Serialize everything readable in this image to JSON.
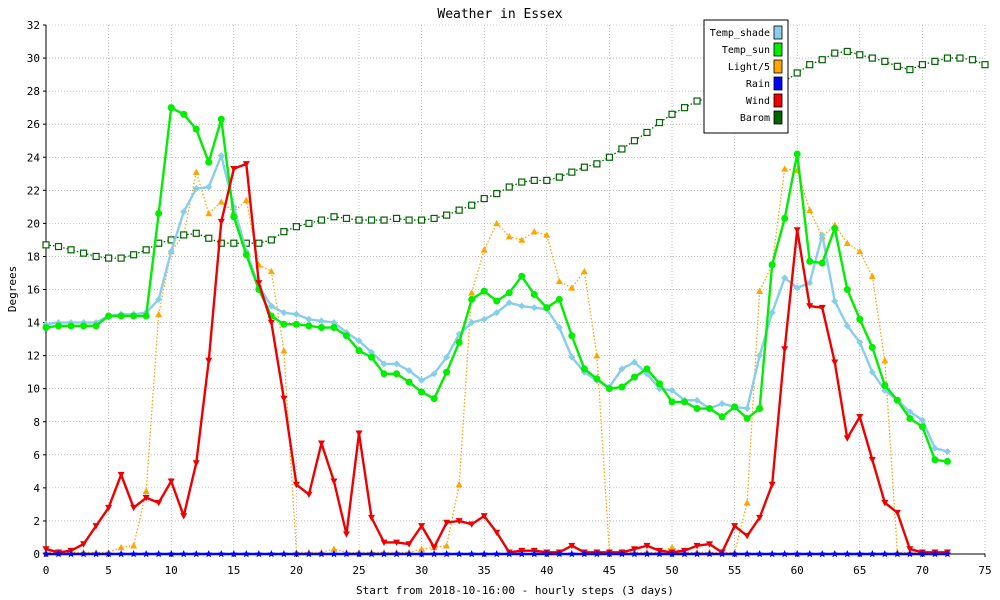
{
  "chart_data": {
    "type": "line",
    "title": "Weather in Essex",
    "xlabel": "Start from 2018-10-16:00 - hourly steps (3 days)",
    "ylabel": "Degrees",
    "xlim": [
      0,
      75
    ],
    "ylim": [
      0,
      32
    ],
    "xticks": [
      0,
      5,
      10,
      15,
      20,
      25,
      30,
      35,
      40,
      45,
      50,
      55,
      60,
      65,
      70,
      75
    ],
    "yticks": [
      0,
      2,
      4,
      6,
      8,
      10,
      12,
      14,
      16,
      18,
      20,
      22,
      24,
      26,
      28,
      30,
      32
    ],
    "grid": true,
    "legend_position": "top-right",
    "series": [
      {
        "name": "Temp_shade",
        "color": "#87ceeb",
        "marker": "diamond",
        "style": "solid",
        "values": [
          13.9,
          14.0,
          14.0,
          14.0,
          14.0,
          14.4,
          14.5,
          14.5,
          14.6,
          15.4,
          18.3,
          20.7,
          22.1,
          22.2,
          24.1,
          21.0,
          18.3,
          16.2,
          15.0,
          14.6,
          14.5,
          14.2,
          14.1,
          14.0,
          13.4,
          12.9,
          12.2,
          11.5,
          11.5,
          11.1,
          10.5,
          10.9,
          11.9,
          13.3,
          14.0,
          14.2,
          14.6,
          15.2,
          15.0,
          14.9,
          14.8,
          13.7,
          11.9,
          11.0,
          10.5,
          10.1,
          11.2,
          11.6,
          10.9,
          10.0,
          9.9,
          9.3,
          9.3,
          8.8,
          9.1,
          8.9,
          8.8,
          12.0,
          14.6,
          16.7,
          16.1,
          16.4,
          19.3,
          15.3,
          13.8,
          12.8,
          11.0,
          9.9,
          9.3,
          8.6,
          8.1,
          6.4,
          6.2
        ]
      },
      {
        "name": "Temp_sun",
        "color": "#00ee00",
        "marker": "circle",
        "style": "solid",
        "values": [
          13.7,
          13.8,
          13.8,
          13.8,
          13.8,
          14.4,
          14.4,
          14.4,
          14.4,
          20.6,
          27.0,
          26.6,
          25.7,
          23.7,
          26.3,
          20.4,
          18.1,
          16.0,
          14.4,
          13.9,
          13.9,
          13.8,
          13.7,
          13.7,
          13.2,
          12.3,
          11.9,
          10.9,
          10.9,
          10.4,
          9.8,
          9.4,
          11.0,
          12.8,
          15.4,
          15.9,
          15.3,
          15.8,
          16.8,
          15.7,
          14.9,
          15.4,
          13.2,
          11.2,
          10.6,
          10.0,
          10.1,
          10.7,
          11.2,
          10.3,
          9.2,
          9.2,
          8.8,
          8.8,
          8.3,
          8.9,
          8.2,
          8.8,
          17.5,
          20.3,
          24.2,
          17.7,
          17.6,
          19.7,
          16.0,
          14.2,
          12.5,
          10.2,
          9.3,
          8.2,
          7.7,
          5.7,
          5.6
        ]
      },
      {
        "name": "Light/5",
        "color": "#ffa500",
        "marker": "triangle-up",
        "style": "dotted",
        "values": [
          0.1,
          0.1,
          0.1,
          0.1,
          0.1,
          0.1,
          0.4,
          0.5,
          3.8,
          14.5,
          18.3,
          19.3,
          23.1,
          20.6,
          21.3,
          20.7,
          21.4,
          17.5,
          17.1,
          12.3,
          0.1,
          0.1,
          0.1,
          0.3,
          0.1,
          0.1,
          0.1,
          0.1,
          0.1,
          0.1,
          0.3,
          0.4,
          0.5,
          4.2,
          15.8,
          18.4,
          20.0,
          19.2,
          19.0,
          19.5,
          19.3,
          16.5,
          16.1,
          17.1,
          12.0,
          0.1,
          0.1,
          0.1,
          0.1,
          0.1,
          0.4,
          0.1,
          0.1,
          0.1,
          0.1,
          0.1,
          3.1,
          15.9,
          17.5,
          23.3,
          23.2,
          20.8,
          19.2,
          19.9,
          18.8,
          18.3,
          16.8,
          11.7,
          0.1,
          0.1,
          0.1,
          0.1,
          0.1
        ]
      },
      {
        "name": "Rain",
        "color": "#0000ff",
        "marker": "star",
        "style": "solid",
        "values": [
          0,
          0,
          0,
          0,
          0,
          0,
          0,
          0,
          0,
          0,
          0,
          0,
          0,
          0,
          0,
          0,
          0,
          0,
          0,
          0,
          0,
          0,
          0,
          0,
          0,
          0,
          0,
          0,
          0,
          0,
          0,
          0,
          0,
          0,
          0,
          0,
          0,
          0,
          0,
          0,
          0,
          0,
          0,
          0,
          0,
          0,
          0,
          0,
          0,
          0,
          0,
          0,
          0,
          0,
          0,
          0,
          0,
          0,
          0,
          0,
          0,
          0,
          0,
          0,
          0,
          0,
          0,
          0,
          0,
          0,
          0,
          0,
          0
        ]
      },
      {
        "name": "Wind",
        "color": "#ee0000",
        "marker": "triangle-down",
        "style": "solid",
        "values": [
          0.3,
          0.1,
          0.2,
          0.6,
          1.7,
          2.8,
          4.8,
          2.8,
          3.4,
          3.1,
          4.4,
          2.3,
          5.5,
          11.7,
          20.1,
          23.3,
          23.6,
          16.4,
          14.0,
          9.4,
          4.2,
          3.6,
          6.7,
          4.4,
          1.2,
          7.3,
          2.2,
          0.7,
          0.7,
          0.6,
          1.7,
          0.4,
          1.9,
          2.0,
          1.8,
          2.3,
          1.3,
          0.1,
          0.2,
          0.2,
          0.1,
          0.1,
          0.5,
          0.1,
          0.1,
          0.1,
          0.1,
          0.3,
          0.5,
          0.2,
          0.1,
          0.2,
          0.5,
          0.6,
          0.1,
          1.7,
          1.1,
          2.2,
          4.2,
          12.4,
          19.6,
          15.0,
          14.9,
          11.6,
          7.0,
          8.3,
          5.7,
          3.1,
          2.5,
          0.3,
          0.1,
          0.1,
          0.1
        ]
      },
      {
        "name": "Barom",
        "color": "#006400",
        "marker": "square-open",
        "style": "dotted",
        "values": [
          18.7,
          18.6,
          18.4,
          18.2,
          18.0,
          17.9,
          17.9,
          18.1,
          18.4,
          18.8,
          19.0,
          19.3,
          19.4,
          19.1,
          18.8,
          18.8,
          18.8,
          18.8,
          19.0,
          19.5,
          19.8,
          20.0,
          20.2,
          20.4,
          20.3,
          20.2,
          20.2,
          20.2,
          20.3,
          20.2,
          20.2,
          20.3,
          20.5,
          20.8,
          21.1,
          21.5,
          21.8,
          22.2,
          22.5,
          22.6,
          22.6,
          22.8,
          23.1,
          23.4,
          23.6,
          24.0,
          24.5,
          25.0,
          25.5,
          26.1,
          26.6,
          27.0,
          27.4,
          27.6,
          27.8,
          28.0,
          28.1,
          28.2,
          28.3,
          28.6,
          29.1,
          29.6,
          29.9,
          30.3,
          30.4,
          30.2,
          30.0,
          29.8,
          29.5,
          29.3,
          29.6,
          29.8,
          30.0,
          30.0,
          29.9,
          29.6
        ]
      }
    ]
  }
}
